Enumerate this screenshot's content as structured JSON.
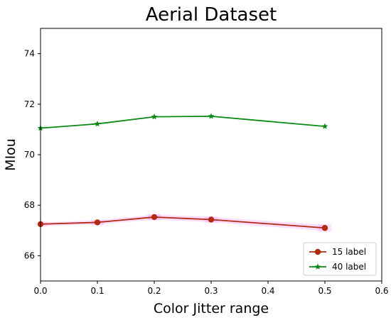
{
  "chart_data": {
    "type": "line",
    "title": "Aerial Dataset",
    "xlabel": "Color Jitter range",
    "ylabel": "MIou",
    "xlim": [
      0.0,
      0.6
    ],
    "ylim": [
      65.0,
      75.0
    ],
    "xticks": [
      "0.0",
      "0.1",
      "0.2",
      "0.3",
      "0.4",
      "0.5",
      "0.6"
    ],
    "yticks": [
      "66",
      "68",
      "70",
      "72",
      "74"
    ],
    "grid": false,
    "legend_position": "lower-right",
    "x": [
      0.0,
      0.1,
      0.2,
      0.3,
      0.5
    ],
    "series": [
      {
        "name": "15 label",
        "values": [
          67.25,
          67.32,
          67.53,
          67.43,
          67.1
        ],
        "error": [
          0.07,
          0.08,
          0.1,
          0.1,
          0.12
        ],
        "color": "#b22a0f",
        "error_color": "#ff80ff",
        "marker": "circle"
      },
      {
        "name": "40 label",
        "values": [
          71.05,
          71.22,
          71.5,
          71.52,
          71.12
        ],
        "color": "#0a8a12",
        "marker": "star"
      }
    ]
  }
}
